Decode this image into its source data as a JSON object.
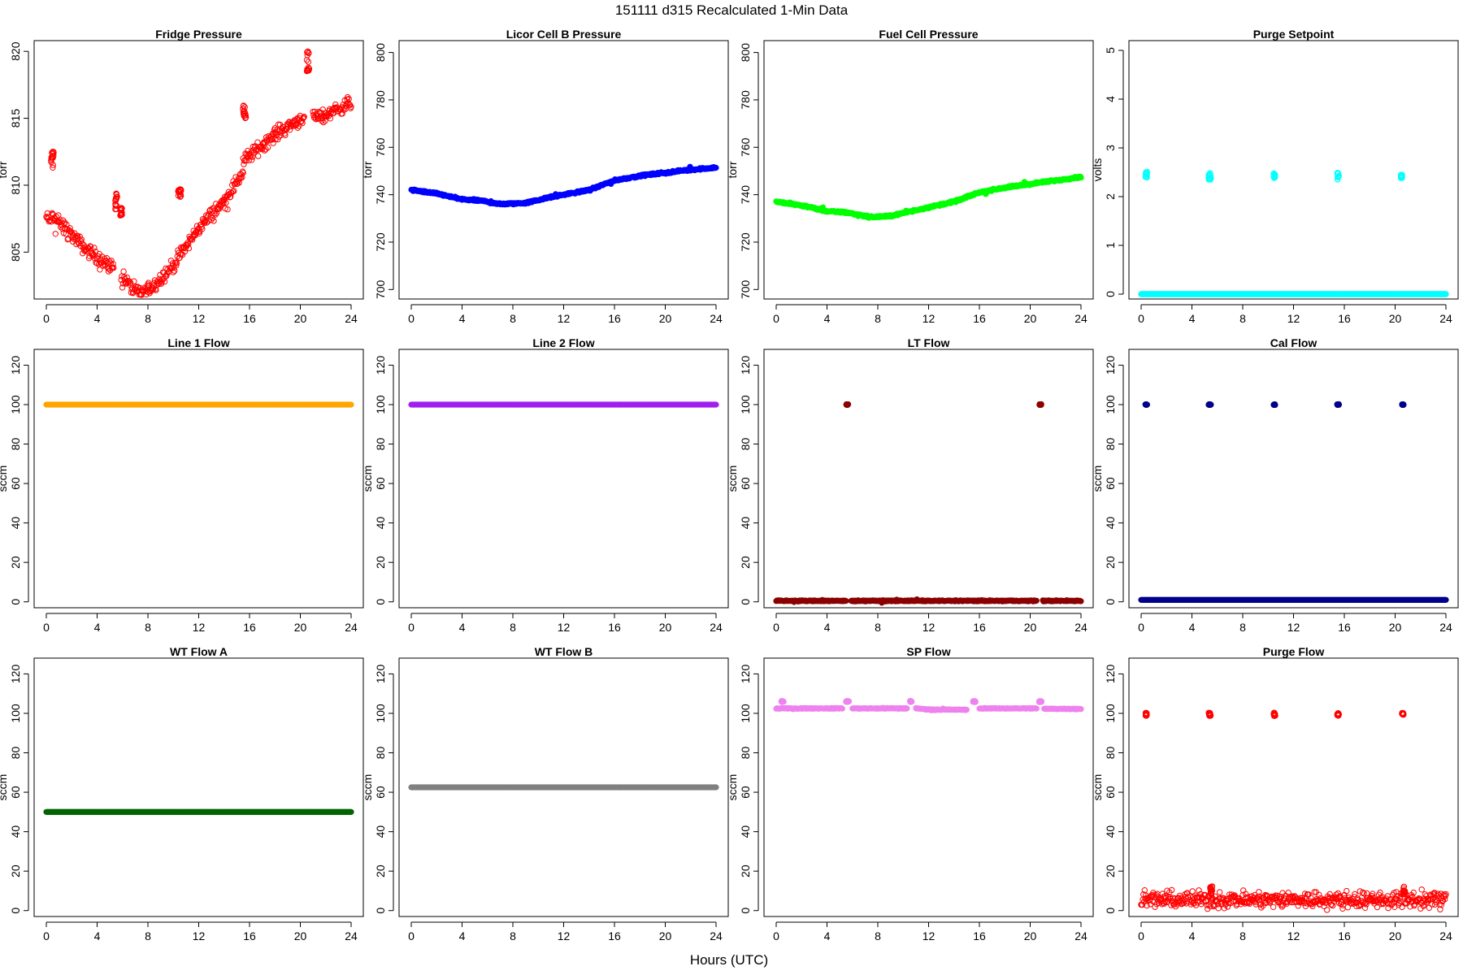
{
  "figure": {
    "title": "151111   d315   Recalculated 1-Min Data",
    "xlabel": "Hours (UTC)"
  },
  "chart_data": [
    {
      "type": "scatter",
      "title": "Fridge Pressure",
      "ylabel": "torr",
      "xlim": [
        0,
        24
      ],
      "ylim": [
        801.5,
        820.8
      ],
      "xticks": [
        0,
        4,
        8,
        12,
        16,
        20,
        24
      ],
      "yticks": [
        805,
        810,
        815,
        820
      ],
      "color": "#ff0000",
      "marker": "open",
      "segments": [
        [
          0,
          807.6,
          0.3,
          807.3
        ],
        [
          0.4,
          807.6,
          1.5,
          806.8
        ],
        [
          1.5,
          806.8,
          3,
          805.3
        ],
        [
          3,
          805.3,
          5.3,
          803.8
        ],
        [
          5.9,
          803.3,
          7,
          802
        ],
        [
          7,
          802,
          8,
          802.1
        ],
        [
          8,
          802.1,
          10,
          804
        ],
        [
          10,
          804,
          12,
          806.8
        ],
        [
          12,
          806.8,
          14,
          808.8
        ],
        [
          14,
          808.8,
          15.5,
          811
        ],
        [
          15.5,
          811.8,
          18,
          813.8
        ],
        [
          18,
          813.8,
          20.3,
          815.1
        ],
        [
          21,
          815,
          22,
          815.2
        ],
        [
          22,
          815.2,
          24,
          816.2
        ]
      ],
      "clusters": [
        [
          0.5,
          811.9,
          0.25,
          0.6
        ],
        [
          5.5,
          808.8,
          0.15,
          0.6
        ],
        [
          5.9,
          808,
          0.15,
          0.3
        ],
        [
          10.5,
          809.4,
          0.25,
          0.3
        ],
        [
          15.6,
          815.3,
          0.25,
          0.7
        ],
        [
          20.6,
          819.4,
          0.2,
          0.9
        ]
      ],
      "noise": 0.25
    },
    {
      "type": "scatter",
      "title": "Licor Cell B Pressure",
      "ylabel": "torr",
      "xlim": [
        0,
        24
      ],
      "ylim": [
        696,
        805
      ],
      "xticks": [
        0,
        4,
        8,
        12,
        16,
        20,
        24
      ],
      "yticks": [
        700,
        720,
        740,
        760,
        780,
        800
      ],
      "color": "#0000ff",
      "marker": "filled",
      "segments": [
        [
          0,
          742,
          2,
          740.5
        ],
        [
          2,
          740.5,
          4,
          738
        ],
        [
          4,
          738,
          5.5,
          737.5
        ],
        [
          5.5,
          737.5,
          7,
          736
        ],
        [
          7,
          736,
          9,
          736.5
        ],
        [
          9,
          736.5,
          11,
          739
        ],
        [
          11,
          739,
          14,
          742
        ],
        [
          14,
          742,
          16,
          746
        ],
        [
          16,
          746,
          18,
          748
        ],
        [
          18,
          748,
          22,
          750.5
        ],
        [
          22,
          750.5,
          24,
          751.5
        ]
      ],
      "clusters": [],
      "noise": 0.2
    },
    {
      "type": "scatter",
      "title": "Fuel Cell Pressure",
      "ylabel": "torr",
      "xlim": [
        0,
        24
      ],
      "ylim": [
        696,
        805
      ],
      "xticks": [
        0,
        4,
        8,
        12,
        16,
        20,
        24
      ],
      "yticks": [
        700,
        720,
        740,
        760,
        780,
        800
      ],
      "color": "#00ff00",
      "marker": "filled",
      "segments": [
        [
          0,
          737,
          2,
          735.5
        ],
        [
          2,
          735.5,
          4,
          733
        ],
        [
          4,
          733,
          5.5,
          732.5
        ],
        [
          5.5,
          732.5,
          7.5,
          730.5
        ],
        [
          7.5,
          730.5,
          9,
          731
        ],
        [
          9,
          731,
          11,
          733.5
        ],
        [
          11,
          733.5,
          14,
          737
        ],
        [
          14,
          737,
          16,
          741
        ],
        [
          16,
          741,
          18,
          743
        ],
        [
          18,
          743,
          22,
          746
        ],
        [
          22,
          746,
          24,
          747.5
        ]
      ],
      "clusters": [],
      "noise": 0.2
    },
    {
      "type": "scatter",
      "title": "Purge Setpoint",
      "ylabel": "volts",
      "xlim": [
        0,
        24
      ],
      "ylim": [
        -0.1,
        5.2
      ],
      "xticks": [
        0,
        4,
        8,
        12,
        16,
        20,
        24
      ],
      "yticks": [
        0,
        1,
        2,
        3,
        4,
        5
      ],
      "color": "#00ffff",
      "marker": "open",
      "segments": [
        [
          0,
          0,
          24,
          0
        ]
      ],
      "clusters": [
        [
          0.4,
          2.45,
          0.12,
          0.06
        ],
        [
          5.4,
          2.42,
          0.18,
          0.07
        ],
        [
          10.5,
          2.43,
          0.12,
          0.05
        ],
        [
          15.5,
          2.42,
          0.15,
          0.07
        ],
        [
          20.5,
          2.42,
          0.1,
          0.04
        ]
      ],
      "noise": 0
    },
    {
      "type": "scatter",
      "title": "Line 1 Flow",
      "ylabel": "sccm",
      "xlim": [
        0,
        24
      ],
      "ylim": [
        -3,
        128
      ],
      "xticks": [
        0,
        4,
        8,
        12,
        16,
        20,
        24
      ],
      "yticks": [
        0,
        20,
        40,
        60,
        80,
        100,
        120
      ],
      "color": "#ffa500",
      "marker": "filled",
      "segments": [
        [
          0,
          100,
          24,
          100
        ]
      ],
      "clusters": [],
      "noise": 0
    },
    {
      "type": "scatter",
      "title": "Line 2 Flow",
      "ylabel": "sccm",
      "xlim": [
        0,
        24
      ],
      "ylim": [
        -3,
        128
      ],
      "xticks": [
        0,
        4,
        8,
        12,
        16,
        20,
        24
      ],
      "yticks": [
        0,
        20,
        40,
        60,
        80,
        100,
        120
      ],
      "color": "#a020f0",
      "marker": "filled",
      "segments": [
        [
          0,
          100,
          24,
          100
        ]
      ],
      "clusters": [],
      "noise": 0
    },
    {
      "type": "scatter",
      "title": "LT Flow",
      "ylabel": "sccm",
      "xlim": [
        0,
        24
      ],
      "ylim": [
        -3,
        128
      ],
      "xticks": [
        0,
        4,
        8,
        12,
        16,
        20,
        24
      ],
      "yticks": [
        0,
        20,
        40,
        60,
        80,
        100,
        120
      ],
      "color": "#8b0000",
      "marker": "filled",
      "segments": [
        [
          0,
          0.5,
          5.5,
          0.5
        ],
        [
          5.9,
          0.5,
          20.5,
          0.5
        ],
        [
          21,
          0.5,
          24,
          0.5
        ]
      ],
      "clusters": [
        [
          5.6,
          100,
          0.15,
          0.2
        ],
        [
          20.8,
          100,
          0.15,
          0.2
        ]
      ],
      "noise": 0.15
    },
    {
      "type": "scatter",
      "title": "Cal Flow",
      "ylabel": "sccm",
      "xlim": [
        0,
        24
      ],
      "ylim": [
        -3,
        128
      ],
      "xticks": [
        0,
        4,
        8,
        12,
        16,
        20,
        24
      ],
      "yticks": [
        0,
        20,
        40,
        60,
        80,
        100,
        120
      ],
      "color": "#00008b",
      "marker": "filled",
      "segments": [
        [
          0,
          1,
          24,
          1
        ]
      ],
      "clusters": [
        [
          0.4,
          100,
          0.15,
          0.2
        ],
        [
          5.4,
          100,
          0.2,
          0.2
        ],
        [
          10.5,
          100,
          0.15,
          0.2
        ],
        [
          15.5,
          100,
          0.15,
          0.2
        ],
        [
          20.6,
          100,
          0.15,
          0.2
        ]
      ],
      "noise": 0
    },
    {
      "type": "scatter",
      "title": "WT Flow A",
      "ylabel": "sccm",
      "xlim": [
        0,
        24
      ],
      "ylim": [
        -3,
        128
      ],
      "xticks": [
        0,
        4,
        8,
        12,
        16,
        20,
        24
      ],
      "yticks": [
        0,
        20,
        40,
        60,
        80,
        100,
        120
      ],
      "color": "#006400",
      "marker": "filled",
      "segments": [
        [
          0,
          50,
          24,
          50
        ]
      ],
      "clusters": [],
      "noise": 0
    },
    {
      "type": "scatter",
      "title": "WT Flow B",
      "ylabel": "sccm",
      "xlim": [
        0,
        24
      ],
      "ylim": [
        -3,
        128
      ],
      "xticks": [
        0,
        4,
        8,
        12,
        16,
        20,
        24
      ],
      "yticks": [
        0,
        20,
        40,
        60,
        80,
        100,
        120
      ],
      "color": "#808080",
      "marker": "filled",
      "segments": [
        [
          0,
          62.5,
          24,
          62.5
        ]
      ],
      "clusters": [],
      "noise": 0
    },
    {
      "type": "scatter",
      "title": "SP Flow",
      "ylabel": "sccm",
      "xlim": [
        0,
        24
      ],
      "ylim": [
        -3,
        128
      ],
      "xticks": [
        0,
        4,
        8,
        12,
        16,
        20,
        24
      ],
      "yticks": [
        0,
        20,
        40,
        60,
        80,
        100,
        120
      ],
      "color": "#ee82ee",
      "marker": "filled",
      "segments": [
        [
          0,
          102.5,
          5.2,
          102.5
        ],
        [
          6,
          102.5,
          10.3,
          102.5
        ],
        [
          11,
          102.5,
          12,
          102
        ],
        [
          12,
          102,
          15,
          101.8
        ],
        [
          16,
          102.5,
          20.5,
          102.5
        ],
        [
          21.1,
          102.3,
          24,
          102.3
        ]
      ],
      "clusters": [
        [
          0.5,
          106,
          0.2,
          0.3
        ],
        [
          5.6,
          106,
          0.25,
          0.3
        ],
        [
          10.6,
          106,
          0.15,
          0.3
        ],
        [
          15.6,
          106,
          0.2,
          0.3
        ],
        [
          20.8,
          106,
          0.2,
          0.3
        ]
      ],
      "noise": 0.1
    },
    {
      "type": "scatter",
      "title": "Purge Flow",
      "ylabel": "sccm",
      "xlim": [
        0,
        24
      ],
      "ylim": [
        -3,
        128
      ],
      "xticks": [
        0,
        4,
        8,
        12,
        16,
        20,
        24
      ],
      "yticks": [
        0,
        20,
        40,
        60,
        80,
        100,
        120
      ],
      "color": "#ff0000",
      "marker": "open",
      "segments": [
        [
          0,
          5.5,
          24,
          5.5
        ]
      ],
      "clusters": [
        [
          0.4,
          99.5,
          0.12,
          0.8
        ],
        [
          5.4,
          99.5,
          0.18,
          0.8
        ],
        [
          10.5,
          99.5,
          0.12,
          0.8
        ],
        [
          15.5,
          99.5,
          0.15,
          0.8
        ],
        [
          20.6,
          99.8,
          0.12,
          0.5
        ],
        [
          5.5,
          10,
          0.2,
          2.5
        ],
        [
          20.7,
          10,
          0.2,
          2.5
        ]
      ],
      "noise": 2.0
    }
  ]
}
